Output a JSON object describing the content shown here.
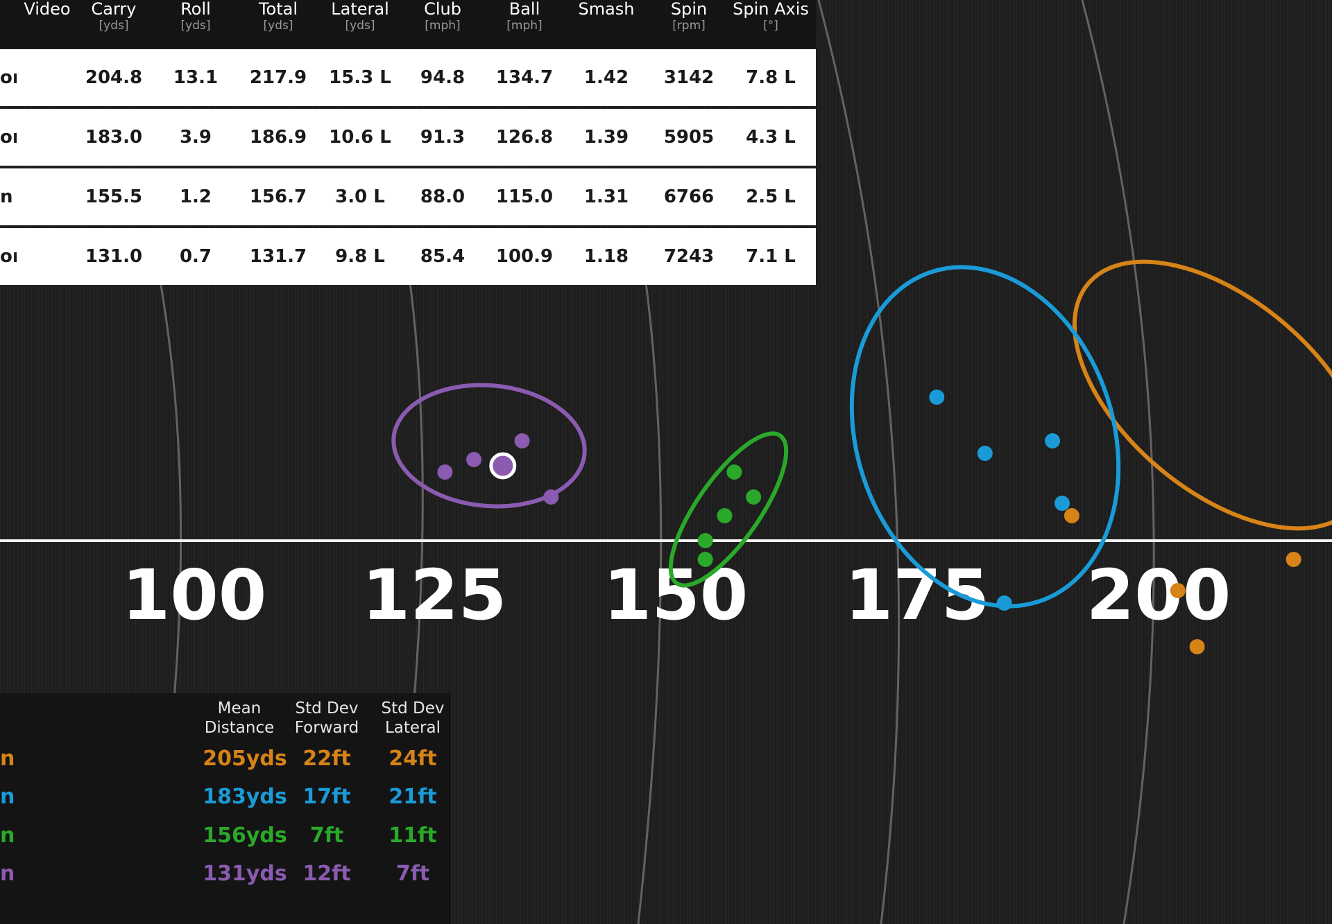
{
  "colors": {
    "driver_orange": "#d68318",
    "wood_blue": "#1a9bd8",
    "hybrid_green": "#2aa82a",
    "iron_purple": "#8a5bb0",
    "table_bg": "#ffffff",
    "header_bg": "#141414",
    "field_bg": "#1e1e1e"
  },
  "table": {
    "headers": [
      {
        "label": "Video",
        "unit": ""
      },
      {
        "label": "Carry",
        "unit": "[yds]"
      },
      {
        "label": "Roll",
        "unit": "[yds]"
      },
      {
        "label": "Total",
        "unit": "[yds]"
      },
      {
        "label": "Lateral",
        "unit": "[yds]"
      },
      {
        "label": "Club",
        "unit": "[mph]"
      },
      {
        "label": "Ball",
        "unit": "[mph]"
      },
      {
        "label": "Smash",
        "unit": ""
      },
      {
        "label": "Spin",
        "unit": "[rpm]"
      },
      {
        "label": "Spin Axis",
        "unit": "[°]"
      }
    ],
    "rows": [
      {
        "club": "on",
        "carry": "204.8",
        "roll": "13.1",
        "total": "217.9",
        "lateral": "15.3 L",
        "club_speed": "94.8",
        "ball_speed": "134.7",
        "smash": "1.42",
        "spin": "3142",
        "spin_axis": "7.8 L"
      },
      {
        "club": "on",
        "carry": "183.0",
        "roll": "3.9",
        "total": "186.9",
        "lateral": "10.6 L",
        "club_speed": "91.3",
        "ball_speed": "126.8",
        "smash": "1.39",
        "spin": "5905",
        "spin_axis": "4.3 L"
      },
      {
        "club": "n",
        "carry": "155.5",
        "roll": "1.2",
        "total": "156.7",
        "lateral": "3.0 L",
        "club_speed": "88.0",
        "ball_speed": "115.0",
        "smash": "1.31",
        "spin": "6766",
        "spin_axis": "2.5 L"
      },
      {
        "club": "on",
        "carry": "131.0",
        "roll": "0.7",
        "total": "131.7",
        "lateral": "9.8 L",
        "club_speed": "85.4",
        "ball_speed": "100.9",
        "smash": "1.18",
        "spin": "7243",
        "spin_axis": "7.1 L"
      }
    ]
  },
  "yard_markers": [
    "100",
    "125",
    "150",
    "175",
    "200"
  ],
  "dispersion": {
    "groups": [
      {
        "key": "driver",
        "color": "#d68318",
        "shots": [
          [
            202,
            8
          ],
          [
            191,
            -4
          ],
          [
            204,
            17
          ],
          [
            214,
            3
          ]
        ]
      },
      {
        "key": "wood",
        "color": "#1a9bd8",
        "shots": [
          [
            182,
            -14
          ],
          [
            177,
            -23
          ],
          [
            189,
            -16
          ],
          [
            190,
            -6
          ],
          [
            184,
            10
          ]
        ]
      },
      {
        "key": "hybrid",
        "color": "#2aa82a",
        "shots": [
          [
            156,
            -11
          ],
          [
            158,
            -7
          ],
          [
            155,
            -4
          ],
          [
            153,
            0
          ],
          [
            153,
            3
          ]
        ]
      },
      {
        "key": "iron",
        "color": "#8a5bb0",
        "shots": [
          [
            126,
            -11
          ],
          [
            129,
            -13
          ],
          [
            134,
            -16
          ],
          [
            137,
            -7
          ]
        ],
        "selected_shot": [
          132,
          -12
        ]
      }
    ]
  },
  "stats": {
    "headers": [
      {
        "line1": "Mean",
        "line2": "Distance"
      },
      {
        "line1": "Std Dev",
        "line2": "Forward"
      },
      {
        "line1": "Std Dev",
        "line2": "Lateral"
      }
    ],
    "rows": [
      {
        "club": "n",
        "color": "#d68318",
        "mean": "205yds",
        "fwd": "22ft",
        "lat": "24ft"
      },
      {
        "club": "n",
        "color": "#1a9bd8",
        "mean": "183yds",
        "fwd": "17ft",
        "lat": "21ft"
      },
      {
        "club": "n",
        "color": "#2aa82a",
        "mean": "156yds",
        "fwd": "7ft",
        "lat": "11ft"
      },
      {
        "club": "n",
        "color": "#8a5bb0",
        "mean": "131yds",
        "fwd": "12ft",
        "lat": "7ft"
      }
    ]
  }
}
